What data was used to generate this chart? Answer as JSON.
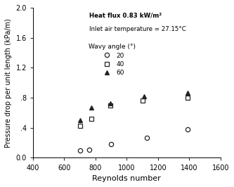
{
  "title_annotation1": "Heat flux 0.83 kW/m²",
  "title_annotation2": "Inlet air temperature = 27.15°C",
  "xlabel": "Reynolds number",
  "ylabel": "Pressure drop per unit length (kPa/m)",
  "xlim": [
    400,
    1600
  ],
  "ylim": [
    0.0,
    2.0
  ],
  "xticks": [
    400,
    600,
    800,
    1000,
    1200,
    1400,
    1600
  ],
  "yticks": [
    0.0,
    0.4,
    0.8,
    1.2,
    1.6,
    2.0
  ],
  "ytick_labels": [
    "0.0",
    ".4",
    ".8",
    "1.2",
    "1.6",
    "2.0"
  ],
  "series": [
    {
      "label": "20",
      "marker": "o",
      "markerfacecolor": "white",
      "markeredgecolor": "#222222",
      "x": [
        700,
        760,
        900,
        1130,
        1390
      ],
      "y": [
        0.1,
        0.11,
        0.18,
        0.27,
        0.38
      ]
    },
    {
      "label": "40",
      "marker": "s",
      "markerfacecolor": "white",
      "markeredgecolor": "#222222",
      "x": [
        700,
        775,
        895,
        1100,
        1390
      ],
      "y": [
        0.43,
        0.52,
        0.7,
        0.76,
        0.8
      ]
    },
    {
      "label": "60",
      "marker": "^",
      "markerfacecolor": "#222222",
      "markeredgecolor": "#222222",
      "x": [
        700,
        775,
        895,
        1110,
        1390
      ],
      "y": [
        0.5,
        0.67,
        0.73,
        0.82,
        0.87
      ]
    }
  ],
  "legend_title": "Wavy angle (°)",
  "background_color": "#ffffff",
  "plot_bg_color": "#ffffff"
}
